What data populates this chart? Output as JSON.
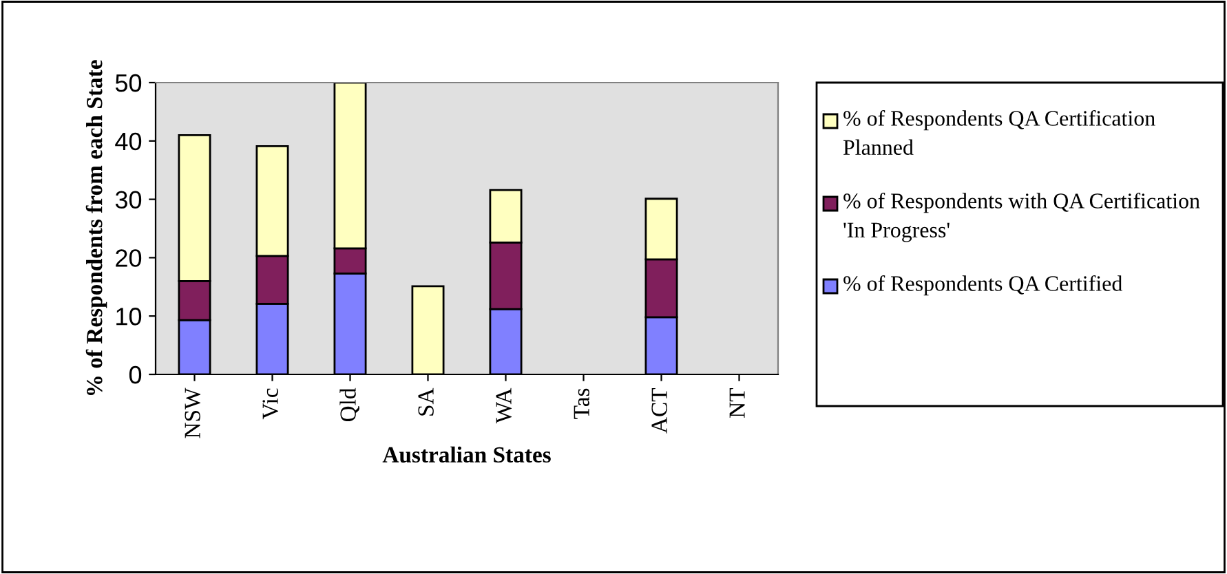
{
  "chart_data": {
    "type": "bar",
    "stacked": true,
    "xlabel": "Australian States",
    "ylabel": "% of Respondents from each State",
    "categories": [
      "NSW",
      "Vic",
      "Qld",
      "SA",
      "WA",
      "Tas",
      "ACT",
      "NT"
    ],
    "series": [
      {
        "name": "% of Respondents QA Certified",
        "color": "#8080ff",
        "values": [
          9.3,
          12.1,
          17.3,
          null,
          11.2,
          null,
          9.8,
          null
        ]
      },
      {
        "name": "% of Respondents with QA Certification 'In Progress'",
        "color": "#801f5c",
        "values": [
          6.7,
          8.2,
          4.3,
          null,
          11.4,
          null,
          9.9,
          null
        ]
      },
      {
        "name": "% of Respondents QA Certification Planned",
        "color": "#ffffc0",
        "values": [
          25.0,
          18.8,
          28.4,
          15.1,
          9.0,
          null,
          10.4,
          null
        ]
      }
    ],
    "ylim": [
      0,
      50
    ],
    "yticks": [
      0,
      10,
      20,
      30,
      40,
      50
    ],
    "grid": false,
    "legend": "right"
  }
}
